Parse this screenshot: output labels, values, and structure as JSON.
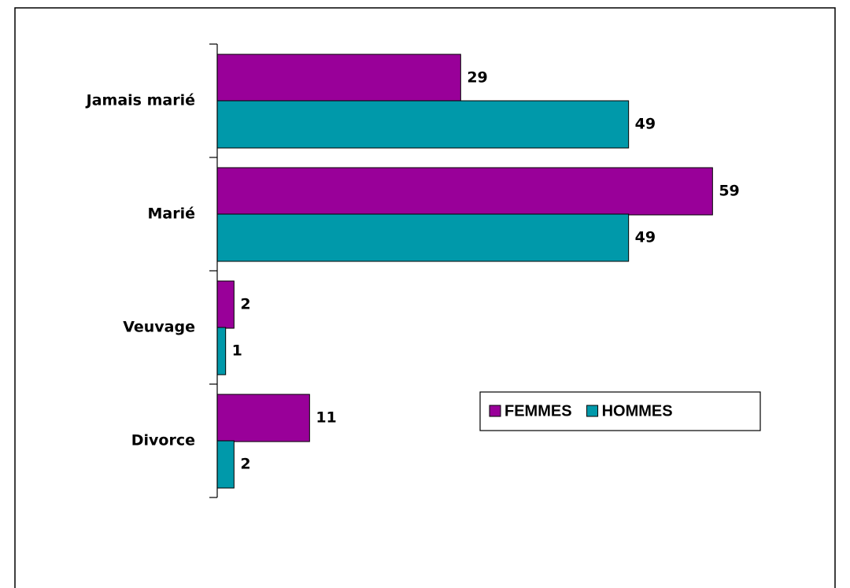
{
  "chart_data": {
    "type": "bar",
    "orientation": "horizontal",
    "categories": [
      "Jamais marié",
      "Marié",
      "Veuvage",
      "Divorce"
    ],
    "series": [
      {
        "name": "FEMMES",
        "color": "#990099",
        "values": [
          29,
          59,
          2,
          11
        ]
      },
      {
        "name": "HOMMES",
        "color": "#0099aa",
        "values": [
          49,
          49,
          1,
          2
        ]
      }
    ],
    "xlim": [
      0,
      60
    ],
    "legend": "right",
    "data_labels": true
  }
}
